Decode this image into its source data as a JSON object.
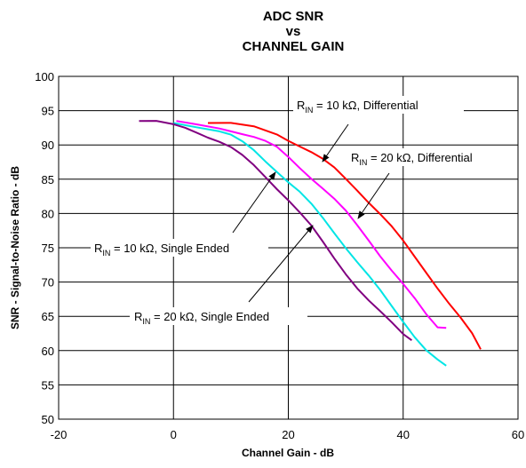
{
  "chart_data": {
    "type": "line",
    "title": [
      "ADC SNR",
      "vs",
      "CHANNEL GAIN"
    ],
    "xlabel": "Channel Gain - dB",
    "ylabel": "SNR - Signal-to-Noise Ratio - dB",
    "xlim": [
      -20,
      60
    ],
    "ylim": [
      50,
      100
    ],
    "xticks": [
      "-20",
      "0",
      "20",
      "40",
      "60"
    ],
    "yticks": [
      "50",
      "55",
      "60",
      "65",
      "70",
      "75",
      "80",
      "85",
      "90",
      "95",
      "100"
    ],
    "grid": true,
    "series": [
      {
        "name": "RIN = 10 kΩ, Differential",
        "color": "#ff0000",
        "x": [
          6,
          10,
          14,
          18,
          20,
          22,
          24,
          26,
          28,
          30,
          32,
          34,
          36,
          38,
          40,
          42,
          44,
          46,
          48,
          50,
          52,
          53.5
        ],
        "y": [
          93.2,
          93.0,
          92.5,
          91.5,
          90.8,
          90.0,
          89.0,
          87.8,
          86.5,
          85.0,
          83.5,
          81.8,
          80.0,
          78.0,
          75.8,
          73.6,
          71.5,
          69.3,
          67.0,
          64.7,
          62.3,
          60.2
        ]
      },
      {
        "name": "RIN = 20 kΩ, Differential",
        "color": "#ff00ff",
        "x": [
          0.5,
          4,
          8,
          12,
          14,
          16,
          18,
          20,
          22,
          24,
          26,
          28,
          30,
          32,
          34,
          36,
          38,
          40,
          42,
          44,
          46,
          47.5
        ],
        "y": [
          93.5,
          93.0,
          92.6,
          91.8,
          91.2,
          90.4,
          89.5,
          88.2,
          86.8,
          85.3,
          83.7,
          82.0,
          80.2,
          78.2,
          76.2,
          74.0,
          71.8,
          69.6,
          67.4,
          65.2,
          63.5,
          63.3
        ]
      },
      {
        "name": "RIN = 10 kΩ, Single Ended",
        "color": "#00e5e5",
        "x": [
          0,
          4,
          8,
          10,
          12,
          14,
          16,
          18,
          20,
          22,
          24,
          26,
          28,
          30,
          32,
          34,
          36,
          38,
          40,
          42,
          44,
          46,
          47.5
        ],
        "y": [
          93.2,
          92.8,
          92.0,
          91.3,
          90.3,
          89.2,
          87.8,
          86.3,
          84.6,
          83.0,
          81.2,
          79.3,
          77.3,
          75.2,
          73.0,
          70.8,
          68.6,
          66.4,
          64.3,
          62.2,
          60.2,
          58.6,
          57.8
        ]
      },
      {
        "name": "RIN = 20 kΩ, Single Ended",
        "color": "#800080",
        "x": [
          -6,
          -3,
          0,
          2,
          4,
          6,
          8,
          10,
          12,
          14,
          16,
          18,
          20,
          22,
          24,
          26,
          28,
          30,
          32,
          34,
          36,
          38,
          40,
          41.5
        ],
        "y": [
          93.5,
          93.3,
          92.8,
          92.5,
          92.0,
          91.3,
          90.5,
          89.5,
          88.3,
          87.0,
          85.5,
          83.8,
          82.0,
          80.0,
          78.0,
          75.8,
          73.6,
          71.4,
          69.2,
          67.2,
          65.5,
          64.0,
          62.5,
          61.5
        ]
      }
    ],
    "annotations": [
      {
        "label": "R",
        "sub": "IN",
        "rest": " = 10 kΩ, Differential"
      },
      {
        "label": "R",
        "sub": "IN",
        "rest": " = 20 kΩ, Differential"
      },
      {
        "label": "R",
        "sub": "IN",
        "rest": " = 10 kΩ, Single Ended"
      },
      {
        "label": "R",
        "sub": "IN",
        "rest": " = 20 kΩ, Single Ended"
      }
    ]
  }
}
